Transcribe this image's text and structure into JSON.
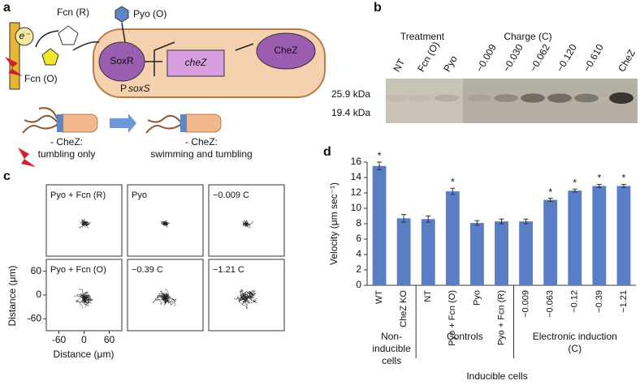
{
  "panel_labels": [
    "a",
    "b",
    "c",
    "d"
  ],
  "panel_a": {
    "fcn_r": "Fcn (R)",
    "pyo_o": "Pyo (O)",
    "electron": "e⁻",
    "fcn_o": "Fcn (O)",
    "soxr": "SoxR",
    "chez_gene": "cheZ",
    "chez_protein": "CheZ",
    "promoter_p": "P",
    "promoter_name": "soxS",
    "minus_label_1": "- CheZ:",
    "minus_desc_1": "tumbling only",
    "minus_label_2": "- CheZ:",
    "minus_desc_2": "swimming and tumbling"
  },
  "panel_b": {
    "treatment": "Treatment",
    "charge": "Charge (C)",
    "lanes": [
      "NT",
      "Fcn (O)",
      "Pyo",
      "−0.009",
      "−0.030",
      "−0.062",
      "−0.120",
      "−0.610",
      "CheZ"
    ],
    "markers": [
      "25.9 kDa",
      "19.4 kDa"
    ]
  },
  "panel_c": {
    "plots": [
      "Pyo + Fcn (R)",
      "Pyo",
      "−0.009 C",
      "Pyo + Fcn (O)",
      "−0.39 C",
      "−1.21 C"
    ],
    "x_label": "Distance (μm)",
    "y_label": "Distance (μm)",
    "xticks": [
      -60,
      0,
      60
    ],
    "yticks": [
      60,
      0,
      -60
    ]
  },
  "chart_data": {
    "type": "bar",
    "y_label": "Velocity (μm sec⁻¹)",
    "categories": [
      "WT",
      "CheZ KO",
      "NT",
      "Pyo + Fcn (O)",
      "Pyo",
      "Pyo + Fcn (R)",
      "−0.009",
      "−0.063",
      "−0.12",
      "−0.39",
      "−1.21"
    ],
    "values": [
      15.5,
      8.7,
      8.6,
      12.2,
      8.1,
      8.3,
      8.3,
      11.1,
      12.3,
      12.9,
      12.9
    ],
    "errors": [
      0.5,
      0.5,
      0.4,
      0.4,
      0.3,
      0.3,
      0.3,
      0.2,
      0.2,
      0.2,
      0.2
    ],
    "markers": [
      "*",
      null,
      null,
      "*",
      null,
      null,
      null,
      "*",
      "*",
      "*",
      "*"
    ],
    "color": "#5a7ec6",
    "ylim": [
      0,
      16
    ],
    "yticks": [
      0,
      2,
      4,
      6,
      8,
      10,
      12,
      14,
      16
    ],
    "groups": [
      [
        "Non-",
        "inducible",
        "cells"
      ],
      [
        "Controls"
      ],
      [
        "Electronic induction",
        "(C)"
      ]
    ],
    "group_title": "Inducible cells"
  }
}
